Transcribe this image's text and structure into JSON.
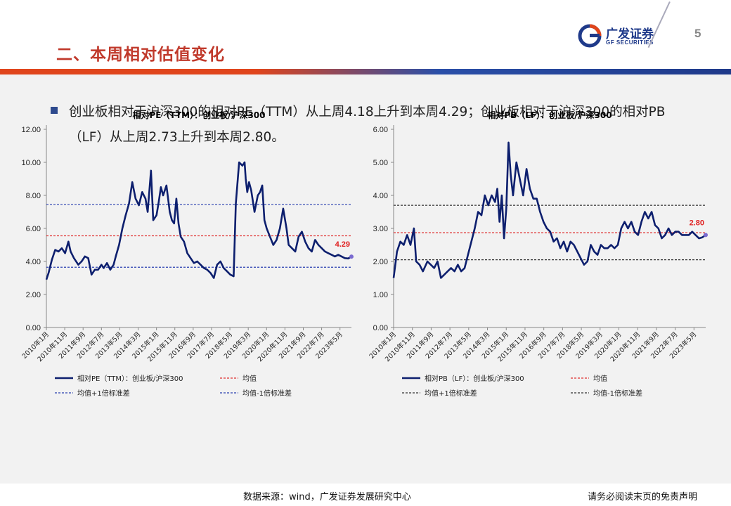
{
  "header": {
    "title": "二、本周相对估值变化",
    "logo_cn": "广发证券",
    "logo_en": "GF SECURITIES",
    "page_number": "5"
  },
  "body": {
    "paragraph": "创业板相对于沪深300的相对PE（TTM）从上周4.18上升到本周4.29；创业板相对于沪深300的相对PB（LF）从上周2.73上升到本周2.80。"
  },
  "footer": {
    "source": "数据来源：wind，广发证券发展研究中心",
    "disclaimer": "请务必阅读末页的免责声明"
  },
  "colors": {
    "series": "#0d1f6e",
    "mean": "#e03030",
    "band_pe": "#2a3fb0",
    "band_pb": "#333333",
    "title_red": "#c0392b"
  },
  "chart_data": [
    {
      "type": "line",
      "title": "相对PE（TTM）：创业板/沪深300",
      "ylim": [
        0,
        12
      ],
      "yticks": [
        "0.00",
        "2.00",
        "4.00",
        "6.00",
        "8.00",
        "10.00",
        "12.00"
      ],
      "xticks": [
        "2010年1月",
        "2010年11月",
        "2011年9月",
        "2012年7月",
        "2013年5月",
        "2014年3月",
        "2015年1月",
        "2015年11月",
        "2016年9月",
        "2017年7月",
        "2018年5月",
        "2019年3月",
        "2020年1月",
        "2020年11月",
        "2021年9月",
        "2022年7月",
        "2023年5月"
      ],
      "x_range": [
        2010.0,
        2023.85
      ],
      "mean": 5.55,
      "plus1sd": 7.45,
      "minus1sd": 3.65,
      "last_label": "4.29",
      "grid": false,
      "legend": [
        "相对PE（TTM）：创业板/沪深300",
        "均值",
        "均值+1倍标准差",
        "均值-1倍标准差"
      ],
      "series": [
        {
          "name": "相对PE（TTM）：创业板/沪深300",
          "x": [
            2010.0,
            2010.1,
            2010.25,
            2010.4,
            2010.55,
            2010.7,
            2010.85,
            2011.0,
            2011.1,
            2011.25,
            2011.45,
            2011.6,
            2011.75,
            2011.9,
            2012.05,
            2012.2,
            2012.35,
            2012.5,
            2012.6,
            2012.75,
            2012.9,
            2013.05,
            2013.15,
            2013.3,
            2013.45,
            2013.6,
            2013.75,
            2013.9,
            2014.05,
            2014.2,
            2014.35,
            2014.5,
            2014.6,
            2014.75,
            2014.85,
            2015.0,
            2015.1,
            2015.2,
            2015.3,
            2015.45,
            2015.6,
            2015.7,
            2015.8,
            2015.9,
            2016.0,
            2016.1,
            2016.25,
            2016.4,
            2016.55,
            2016.7,
            2016.85,
            2017.0,
            2017.15,
            2017.3,
            2017.45,
            2017.6,
            2017.75,
            2017.9,
            2018.05,
            2018.2,
            2018.35,
            2018.5,
            2018.6,
            2018.75,
            2018.9,
            2019.0,
            2019.05,
            2019.12,
            2019.2,
            2019.3,
            2019.45,
            2019.6,
            2019.7,
            2019.8,
            2019.9,
            2020.0,
            2020.15,
            2020.3,
            2020.45,
            2020.6,
            2020.75,
            2020.9,
            2021.0,
            2021.15,
            2021.3,
            2021.45,
            2021.6,
            2021.75,
            2021.9,
            2022.05,
            2022.2,
            2022.35,
            2022.5,
            2022.65,
            2022.8,
            2022.95,
            2023.1,
            2023.25,
            2023.4,
            2023.55,
            2023.7,
            2023.85
          ],
          "values": [
            2.9,
            3.3,
            4.1,
            4.7,
            4.6,
            4.8,
            4.5,
            5.2,
            4.6,
            4.2,
            3.8,
            4.0,
            4.3,
            4.2,
            3.2,
            3.5,
            3.5,
            3.8,
            3.6,
            3.9,
            3.5,
            3.8,
            4.3,
            5.0,
            6.0,
            6.8,
            7.5,
            8.8,
            7.8,
            7.4,
            8.2,
            7.8,
            7.0,
            9.5,
            6.5,
            6.8,
            7.6,
            8.5,
            8.0,
            8.6,
            7.0,
            6.5,
            6.3,
            7.8,
            6.3,
            5.5,
            5.2,
            4.5,
            4.2,
            3.9,
            4.0,
            3.8,
            3.6,
            3.5,
            3.3,
            3.0,
            3.8,
            4.0,
            3.6,
            3.4,
            3.2,
            3.1,
            7.5,
            10.0,
            9.8,
            10.0,
            9.0,
            8.2,
            8.8,
            8.3,
            7.0,
            8.0,
            8.2,
            8.6,
            6.5,
            6.0,
            5.5,
            5.0,
            5.3,
            6.0,
            7.2,
            6.0,
            5.0,
            4.8,
            4.6,
            5.5,
            5.8,
            5.2,
            4.8,
            4.6,
            5.3,
            5.0,
            4.8,
            4.6,
            4.5,
            4.4,
            4.3,
            4.4,
            4.3,
            4.2,
            4.18,
            4.29
          ]
        }
      ]
    },
    {
      "type": "line",
      "title": "相对PB（LF）：创业板/沪深300",
      "ylim": [
        0,
        6
      ],
      "yticks": [
        "0.00",
        "1.00",
        "2.00",
        "3.00",
        "4.00",
        "5.00",
        "6.00"
      ],
      "xticks": [
        "2010年1月",
        "2010年11月",
        "2011年9月",
        "2012年7月",
        "2013年5月",
        "2014年3月",
        "2015年1月",
        "2015年11月",
        "2016年9月",
        "2017年7月",
        "2018年5月",
        "2019年3月",
        "2020年1月",
        "2020年11月",
        "2021年9月",
        "2022年7月",
        "2023年5月"
      ],
      "x_range": [
        2010.0,
        2023.85
      ],
      "mean": 2.87,
      "plus1sd": 3.7,
      "minus1sd": 2.05,
      "last_label": "2.80",
      "grid": false,
      "legend": [
        "相对PB（LF）：创业板/沪深300",
        "均值",
        "均值+1倍标准差",
        "均值-1倍标准差"
      ],
      "series": [
        {
          "name": "相对PB（LF）：创业板/沪深300",
          "x": [
            2010.0,
            2010.15,
            2010.3,
            2010.45,
            2010.6,
            2010.75,
            2010.9,
            2011.0,
            2011.15,
            2011.3,
            2011.5,
            2011.65,
            2011.8,
            2011.95,
            2012.1,
            2012.25,
            2012.4,
            2012.55,
            2012.7,
            2012.85,
            2013.0,
            2013.15,
            2013.3,
            2013.45,
            2013.6,
            2013.75,
            2013.9,
            2014.05,
            2014.2,
            2014.35,
            2014.5,
            2014.6,
            2014.7,
            2014.8,
            2014.9,
            2015.0,
            2015.1,
            2015.2,
            2015.3,
            2015.45,
            2015.6,
            2015.75,
            2015.9,
            2016.05,
            2016.2,
            2016.35,
            2016.5,
            2016.65,
            2016.8,
            2016.95,
            2017.1,
            2017.25,
            2017.4,
            2017.55,
            2017.7,
            2017.85,
            2018.0,
            2018.15,
            2018.3,
            2018.45,
            2018.6,
            2018.75,
            2018.9,
            2019.05,
            2019.2,
            2019.35,
            2019.5,
            2019.65,
            2019.8,
            2019.95,
            2020.1,
            2020.25,
            2020.4,
            2020.55,
            2020.7,
            2020.85,
            2021.0,
            2021.15,
            2021.3,
            2021.45,
            2021.6,
            2021.75,
            2021.9,
            2022.05,
            2022.2,
            2022.35,
            2022.5,
            2022.65,
            2022.8,
            2022.95,
            2023.1,
            2023.25,
            2023.4,
            2023.55,
            2023.7,
            2023.85
          ],
          "values": [
            1.5,
            2.3,
            2.6,
            2.5,
            2.8,
            2.5,
            3.0,
            2.0,
            1.9,
            1.7,
            2.0,
            1.9,
            1.8,
            2.0,
            1.5,
            1.6,
            1.7,
            1.8,
            1.7,
            1.9,
            1.7,
            1.8,
            2.2,
            2.6,
            3.0,
            3.5,
            3.4,
            4.0,
            3.7,
            4.0,
            3.8,
            4.2,
            3.2,
            4.0,
            2.7,
            3.6,
            5.6,
            4.6,
            4.0,
            5.0,
            4.5,
            4.0,
            4.8,
            4.2,
            3.9,
            3.9,
            3.5,
            3.2,
            3.0,
            2.9,
            2.6,
            2.7,
            2.4,
            2.6,
            2.3,
            2.6,
            2.5,
            2.3,
            2.1,
            1.9,
            2.0,
            2.5,
            2.3,
            2.2,
            2.5,
            2.4,
            2.4,
            2.5,
            2.4,
            2.5,
            3.0,
            3.2,
            3.0,
            3.2,
            2.9,
            2.8,
            3.2,
            3.5,
            3.3,
            3.5,
            3.1,
            3.0,
            2.7,
            2.8,
            3.0,
            2.8,
            2.9,
            2.9,
            2.8,
            2.8,
            2.8,
            2.9,
            2.8,
            2.7,
            2.73,
            2.8
          ]
        }
      ]
    }
  ]
}
